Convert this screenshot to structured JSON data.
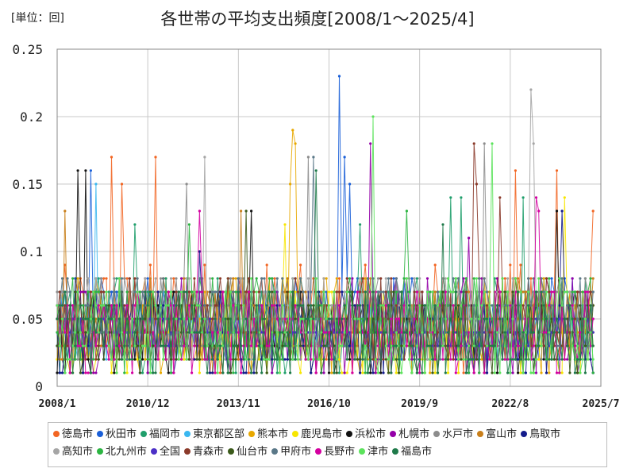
{
  "unit_label": "[単位：回]",
  "chart_data": {
    "type": "line",
    "title": "各世帯の平均支出頻度[2008/1～2025/4]",
    "xlabel": "",
    "ylabel": "",
    "x_start": "2008/1",
    "x_end": "2025/7",
    "x_ticks": [
      "2008/1",
      "2010/12",
      "2013/11",
      "2016/10",
      "2019/9",
      "2022/8",
      "2025/7"
    ],
    "y_ticks": [
      "0",
      "0.05",
      "0.1",
      "0.15",
      "0.2",
      "0.25"
    ],
    "ylim": [
      0,
      0.25
    ],
    "grid": true,
    "legend_position": "bottom",
    "series": [
      {
        "name": "徳島市",
        "color": "#f26522",
        "range": [
          0.01,
          0.09
        ],
        "peaks": [
          [
            "2009/10",
            0.17
          ],
          [
            "2010/2",
            0.15
          ],
          [
            "2011/3",
            0.17
          ],
          [
            "2022/10",
            0.16
          ],
          [
            "2024/2",
            0.16
          ],
          [
            "2025/4",
            0.13
          ]
        ]
      },
      {
        "name": "秋田市",
        "color": "#1a5fd8",
        "range": [
          0.02,
          0.08
        ],
        "peaks": [
          [
            "2009/2",
            0.16
          ],
          [
            "2017/2",
            0.23
          ],
          [
            "2017/4",
            0.17
          ],
          [
            "2017/6",
            0.15
          ]
        ]
      },
      {
        "name": "福岡市",
        "color": "#1f9e6b",
        "range": [
          0.01,
          0.08
        ],
        "peaks": [
          [
            "2010/7",
            0.12
          ],
          [
            "2017/10",
            0.12
          ],
          [
            "2020/9",
            0.14
          ],
          [
            "2021/1",
            0.14
          ],
          [
            "2023/1",
            0.14
          ]
        ]
      },
      {
        "name": "東京都区部",
        "color": "#3ab7f0",
        "range": [
          0.02,
          0.07
        ],
        "peaks": [
          [
            "2009/4",
            0.15
          ]
        ]
      },
      {
        "name": "熊本市",
        "color": "#e8a800",
        "range": [
          0.01,
          0.08
        ],
        "peaks": [
          [
            "2015/8",
            0.19
          ],
          [
            "2015/9",
            0.18
          ],
          [
            "2015/7",
            0.15
          ]
        ]
      },
      {
        "name": "鹿児島市",
        "color": "#f7e600",
        "range": [
          0.01,
          0.07
        ],
        "peaks": [
          [
            "2015/5",
            0.12
          ],
          [
            "2024/5",
            0.14
          ]
        ]
      },
      {
        "name": "浜松市",
        "color": "#111111",
        "range": [
          0.01,
          0.07
        ],
        "peaks": [
          [
            "2008/9",
            0.16
          ],
          [
            "2008/12",
            0.16
          ],
          [
            "2014/4",
            0.13
          ],
          [
            "2024/2",
            0.13
          ]
        ]
      },
      {
        "name": "札幌市",
        "color": "#9400a8",
        "range": [
          0.01,
          0.08
        ],
        "peaks": [
          [
            "2018/2",
            0.18
          ],
          [
            "2021/4",
            0.11
          ]
        ]
      },
      {
        "name": "水戸市",
        "color": "#8c8c8c",
        "range": [
          0.02,
          0.08
        ],
        "peaks": [
          [
            "2012/3",
            0.15
          ],
          [
            "2016/2",
            0.17
          ],
          [
            "2021/10",
            0.18
          ]
        ]
      },
      {
        "name": "富山市",
        "color": "#c97f1a",
        "range": [
          0.02,
          0.08
        ],
        "peaks": [
          [
            "2008/4",
            0.13
          ],
          [
            "2013/12",
            0.13
          ]
        ]
      },
      {
        "name": "鳥取市",
        "color": "#141c8c",
        "range": [
          0.01,
          0.07
        ],
        "peaks": [
          [
            "2012/8",
            0.1
          ],
          [
            "2024/4",
            0.13
          ]
        ]
      },
      {
        "name": "高知市",
        "color": "#a5a5a5",
        "range": [
          0.02,
          0.08
        ],
        "peaks": [
          [
            "2012/10",
            0.17
          ],
          [
            "2023/4",
            0.22
          ],
          [
            "2023/5",
            0.18
          ]
        ]
      },
      {
        "name": "北九州市",
        "color": "#2cb542",
        "range": [
          0.01,
          0.08
        ],
        "peaks": [
          [
            "2012/4",
            0.12
          ],
          [
            "2019/4",
            0.13
          ]
        ]
      },
      {
        "name": "全国",
        "color": "#4b2fc6",
        "range": [
          0.03,
          0.05
        ],
        "peaks": []
      },
      {
        "name": "青森市",
        "color": "#8b3a2a",
        "range": [
          0.02,
          0.08
        ],
        "peaks": [
          [
            "2021/6",
            0.18
          ],
          [
            "2021/7",
            0.15
          ],
          [
            "2022/4",
            0.14
          ]
        ]
      },
      {
        "name": "仙台市",
        "color": "#3b5a1a",
        "range": [
          0.01,
          0.07
        ],
        "peaks": [
          [
            "2014/2",
            0.13
          ]
        ]
      },
      {
        "name": "甲府市",
        "color": "#5a7888",
        "range": [
          0.02,
          0.08
        ],
        "peaks": [
          [
            "2016/4",
            0.17
          ]
        ]
      },
      {
        "name": "長野市",
        "color": "#d400a0",
        "range": [
          0.01,
          0.07
        ],
        "peaks": [
          [
            "2012/8",
            0.13
          ],
          [
            "2023/6",
            0.14
          ],
          [
            "2023/7",
            0.13
          ]
        ]
      },
      {
        "name": "津市",
        "color": "#5ce35c",
        "range": [
          0.01,
          0.08
        ],
        "peaks": [
          [
            "2018/3",
            0.2
          ],
          [
            "2022/1",
            0.18
          ]
        ]
      },
      {
        "name": "福島市",
        "color": "#1f7a4a",
        "range": [
          0.01,
          0.07
        ],
        "peaks": [
          [
            "2016/5",
            0.16
          ],
          [
            "2020/6",
            0.12
          ]
        ]
      }
    ]
  }
}
